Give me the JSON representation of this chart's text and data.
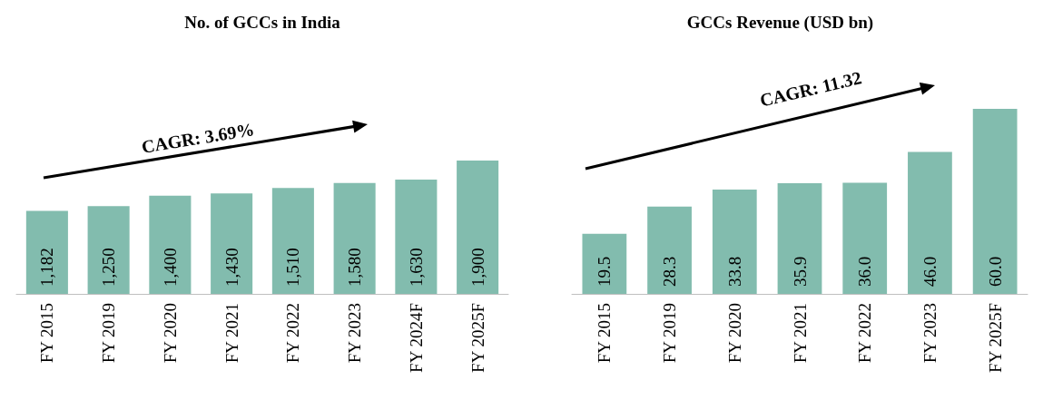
{
  "chart_data": [
    {
      "type": "bar",
      "title": "No. of GCCs in India",
      "categories": [
        "FY 2015",
        "FY 2019",
        "FY 2020",
        "FY 2021",
        "FY 2022",
        "FY 2023",
        "FY 2024F",
        "FY 2025F"
      ],
      "values": [
        1182,
        1250,
        1400,
        1430,
        1510,
        1580,
        1630,
        1900
      ],
      "value_labels": [
        "1,182",
        "1,250",
        "1,400",
        "1,430",
        "1,510",
        "1,580",
        "1,630",
        "1,900"
      ],
      "color": "#82bcae",
      "tick_labels": "x",
      "annotations": [
        "CAGR: 3.69%"
      ]
    },
    {
      "type": "bar",
      "title": "GCCs Revenue (USD bn)",
      "categories": [
        "FY 2015",
        "FY 2019",
        "FY 2020",
        "FY 2021",
        "FY 2022",
        "FY 2023",
        "FY 2025F"
      ],
      "values": [
        19.5,
        28.3,
        33.8,
        35.9,
        36.0,
        46.0,
        60.0
      ],
      "value_labels": [
        "19.5",
        "28.3",
        "33.8",
        "35.9",
        "36.0",
        "46.0",
        "60.0"
      ],
      "color": "#82bcae",
      "tick_labels": "x",
      "annotations": [
        "CAGR: 11.32"
      ]
    }
  ]
}
